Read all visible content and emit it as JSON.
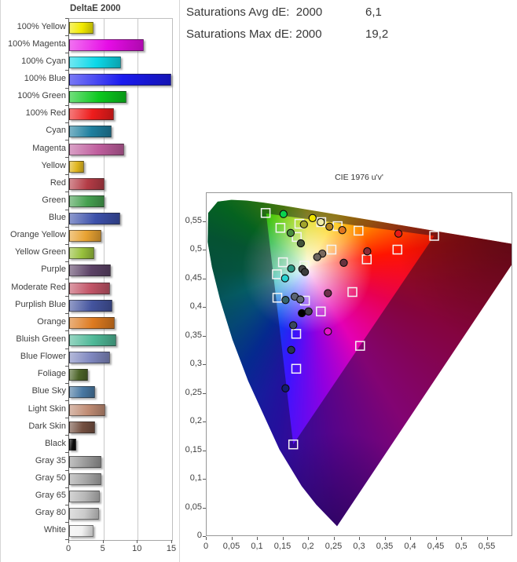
{
  "summary": {
    "rows": [
      {
        "label": "Saturations Avg dE:  2000",
        "value": "6,1"
      },
      {
        "label": "Saturations Max dE: 2000",
        "value": "19,2"
      }
    ]
  },
  "chart_data": [
    {
      "type": "bar",
      "orientation": "horizontal",
      "title": "DeltaE 2000",
      "xlim": [
        0,
        15
      ],
      "xticks": [
        "0",
        "5",
        "10",
        "15"
      ],
      "grid": true,
      "note": "100% Blue bar reaches the axis maximum (clipped at 15)",
      "categories": [
        "100% Yellow",
        "100% Magenta",
        "100% Cyan",
        "100% Blue",
        "100% Green",
        "100% Red",
        "Cyan",
        "Magenta",
        "Yellow",
        "Red",
        "Green",
        "Blue",
        "Orange Yellow",
        "Yellow Green",
        "Purple",
        "Moderate Red",
        "Purplish Blue",
        "Orange",
        "Bluish Green",
        "Blue Flower",
        "Foliage",
        "Blue Sky",
        "Light Skin",
        "Dark Skin",
        "Black",
        "Gray 35",
        "Gray 50",
        "Gray 65",
        "Gray 80",
        "White"
      ],
      "values": [
        3.5,
        10.9,
        7.6,
        15.2,
        8.4,
        6.5,
        6.2,
        8.0,
        2.2,
        5.2,
        5.1,
        7.4,
        4.7,
        3.7,
        6.1,
        6.0,
        6.3,
        6.6,
        6.9,
        5.9,
        2.7,
        3.8,
        5.3,
        3.8,
        1.0,
        4.7,
        4.7,
        4.5,
        4.4,
        3.6
      ],
      "colors": [
        "#f2ea00",
        "#e60ce6",
        "#0cd8e8",
        "#1a1aee",
        "#0cc81e",
        "#ee1c1c",
        "#1f7f9e",
        "#c05f9e",
        "#e0b61e",
        "#b43c46",
        "#46a050",
        "#3c50aa",
        "#e8a232",
        "#98c03c",
        "#5c4266",
        "#c25568",
        "#44549e",
        "#dd7a20",
        "#4eb897",
        "#8088c0",
        "#4c6428",
        "#4878a2",
        "#c08c74",
        "#745041",
        "#0d0d0d",
        "#989898",
        "#a6a6a6",
        "#b6b6b6",
        "#cacaca",
        "#f2f2f2"
      ]
    },
    {
      "type": "scatter",
      "title": "CIE 1976 u'v'",
      "xlim": [
        0,
        0.6
      ],
      "ylim": [
        0,
        0.6
      ],
      "xticks": [
        "0",
        "0,05",
        "0,1",
        "0,15",
        "0,2",
        "0,25",
        "0,3",
        "0,35",
        "0,4",
        "0,45",
        "0,5",
        "0,55"
      ],
      "yticks": [
        "0",
        "0,05",
        "0,1",
        "0,15",
        "0,2",
        "0,25",
        "0,3",
        "0,35",
        "0,4",
        "0,45",
        "0,5",
        "0,55"
      ],
      "gamut_triangle_uv": {
        "green": [
          0.118,
          0.563
        ],
        "red": [
          0.447,
          0.524
        ],
        "blue": [
          0.171,
          0.16
        ]
      },
      "series": [
        {
          "name": "reference targets",
          "marker": "square",
          "marker_color": "#f5f5f5",
          "points": [
            [
              0.117,
              0.564
            ],
            [
              0.146,
              0.538
            ],
            [
              0.183,
              0.545
            ],
            [
              0.178,
              0.522
            ],
            [
              0.226,
              0.548
            ],
            [
              0.258,
              0.541
            ],
            [
              0.299,
              0.533
            ],
            [
              0.246,
              0.5
            ],
            [
              0.315,
              0.483
            ],
            [
              0.375,
              0.5
            ],
            [
              0.447,
              0.524
            ],
            [
              0.151,
              0.478
            ],
            [
              0.193,
              0.472
            ],
            [
              0.139,
              0.457
            ],
            [
              0.14,
              0.416
            ],
            [
              0.194,
              0.411
            ],
            [
              0.287,
              0.426
            ],
            [
              0.225,
              0.392
            ],
            [
              0.177,
              0.353
            ],
            [
              0.302,
              0.332
            ],
            [
              0.177,
              0.292
            ],
            [
              0.171,
              0.16
            ]
          ]
        },
        {
          "name": "measured points",
          "marker": "circle",
          "points": [
            {
              "u": 0.152,
              "v": 0.562,
              "color": "#0ad24e"
            },
            {
              "u": 0.192,
              "v": 0.544,
              "color": "#a2a42c"
            },
            {
              "u": 0.209,
              "v": 0.555,
              "color": "#f0e400"
            },
            {
              "u": 0.225,
              "v": 0.548,
              "color": "#f0eca8"
            },
            {
              "u": 0.242,
              "v": 0.54,
              "color": "#b2841e"
            },
            {
              "u": 0.267,
              "v": 0.534,
              "color": "#e0761e"
            },
            {
              "u": 0.166,
              "v": 0.529,
              "color": "#4a8f3e"
            },
            {
              "u": 0.186,
              "v": 0.511,
              "color": "#41533a"
            },
            {
              "u": 0.377,
              "v": 0.528,
              "color": "#e81a14"
            },
            {
              "u": 0.316,
              "v": 0.497,
              "color": "#8d2b35"
            },
            {
              "u": 0.228,
              "v": 0.493,
              "color": "#7a6a5e"
            },
            {
              "u": 0.218,
              "v": 0.487,
              "color": "#6e6660"
            },
            {
              "u": 0.27,
              "v": 0.477,
              "color": "#67333f"
            },
            {
              "u": 0.167,
              "v": 0.467,
              "color": "#2f9a86"
            },
            {
              "u": 0.189,
              "v": 0.466,
              "color": "#4a4a4a"
            },
            {
              "u": 0.194,
              "v": 0.461,
              "color": "#3d3d3d"
            },
            {
              "u": 0.155,
              "v": 0.45,
              "color": "#28d2d2"
            },
            {
              "u": 0.239,
              "v": 0.424,
              "color": "#6e2f4a"
            },
            {
              "u": 0.156,
              "v": 0.412,
              "color": "#35656e"
            },
            {
              "u": 0.174,
              "v": 0.418,
              "color": "#5a6474"
            },
            {
              "u": 0.185,
              "v": 0.413,
              "color": "#5f6876"
            },
            {
              "u": 0.188,
              "v": 0.389,
              "color": "#000000"
            },
            {
              "u": 0.201,
              "v": 0.392,
              "color": "#3f4049"
            },
            {
              "u": 0.171,
              "v": 0.368,
              "color": "#39475f"
            },
            {
              "u": 0.239,
              "v": 0.357,
              "color": "#e614c8"
            },
            {
              "u": 0.167,
              "v": 0.325,
              "color": "#273551"
            },
            {
              "u": 0.156,
              "v": 0.258,
              "color": "#141d6e"
            }
          ]
        }
      ]
    }
  ]
}
